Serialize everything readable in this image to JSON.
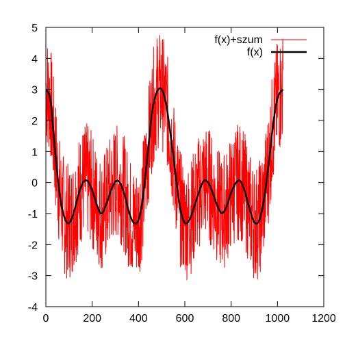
{
  "chart_data": {
    "type": "line",
    "title": "",
    "xlabel": "",
    "ylabel": "",
    "xlim": [
      0,
      1200
    ],
    "ylim": [
      -4,
      5
    ],
    "x_ticks": [
      0,
      200,
      400,
      600,
      800,
      1000,
      1200
    ],
    "y_ticks": [
      -4,
      -3,
      -2,
      -1,
      0,
      1,
      2,
      3,
      4,
      5
    ],
    "legend_position": "top-right",
    "grid": false,
    "series": [
      {
        "name": "f(x)+szum",
        "color": "#ff0000",
        "style": "thin noisy line",
        "x": [
          0,
          20,
          40,
          60,
          80,
          100,
          120,
          140,
          160,
          180,
          200,
          220,
          240,
          260,
          280,
          300,
          320,
          340,
          360,
          380,
          400,
          420,
          440,
          460,
          480,
          500,
          520,
          540,
          560,
          580,
          600,
          620,
          640,
          660,
          680,
          700,
          720,
          740,
          760,
          780,
          800,
          820,
          840,
          860,
          880,
          900,
          920,
          940,
          960,
          980,
          1000,
          1024
        ],
        "y": [
          4.2,
          1.4,
          0.2,
          2.6,
          -2.0,
          0.8,
          -1.8,
          0.6,
          -0.6,
          1.2,
          -1.6,
          0.4,
          -1.4,
          -0.2,
          1.0,
          -1.5,
          0.9,
          -0.5,
          -2.3,
          0.3,
          -2.9,
          0.5,
          -1.2,
          2.4,
          1.1,
          4.3,
          1.6,
          2.8,
          -1.0,
          1.9,
          -1.9,
          0.6,
          -1.6,
          -0.4,
          0.8,
          -2.1,
          1.4,
          -1.8,
          0.0,
          -1.1,
          1.3,
          -0.6,
          0.9,
          -2.2,
          -1.0,
          -2.7,
          0.4,
          -1.7,
          2.1,
          0.9,
          3.6,
          4.1
        ]
      },
      {
        "name": "f(x)",
        "color": "#000000",
        "style": "thick smooth line",
        "x": [
          0,
          20,
          40,
          60,
          80,
          100,
          120,
          140,
          160,
          180,
          200,
          220,
          240,
          260,
          280,
          300,
          320,
          340,
          360,
          380,
          400,
          420,
          440,
          460,
          480,
          500,
          520,
          540,
          560,
          580,
          600,
          620,
          640,
          660,
          680,
          700,
          720,
          740,
          760,
          780,
          800,
          820,
          840,
          860,
          880,
          900,
          920,
          940,
          960,
          980,
          1000,
          1024
        ],
        "y": [
          3.0,
          2.64,
          1.0,
          -0.39,
          -1.12,
          -1.31,
          -0.98,
          -0.41,
          0.0,
          0.05,
          -0.25,
          -0.72,
          -1.0,
          -0.71,
          -0.28,
          0.03,
          0.0,
          -0.4,
          -0.98,
          -1.3,
          -1.2,
          -0.44,
          0.96,
          2.33,
          2.93,
          3.0,
          2.5,
          1.45,
          0.27,
          -0.82,
          -1.3,
          -1.2,
          -0.79,
          -0.33,
          0.04,
          0.01,
          -0.33,
          -0.74,
          -0.99,
          -0.78,
          -0.33,
          -0.02,
          0.05,
          -0.31,
          -0.86,
          -1.28,
          -1.24,
          -0.63,
          0.48,
          1.79,
          2.72,
          3.0
        ]
      }
    ]
  }
}
